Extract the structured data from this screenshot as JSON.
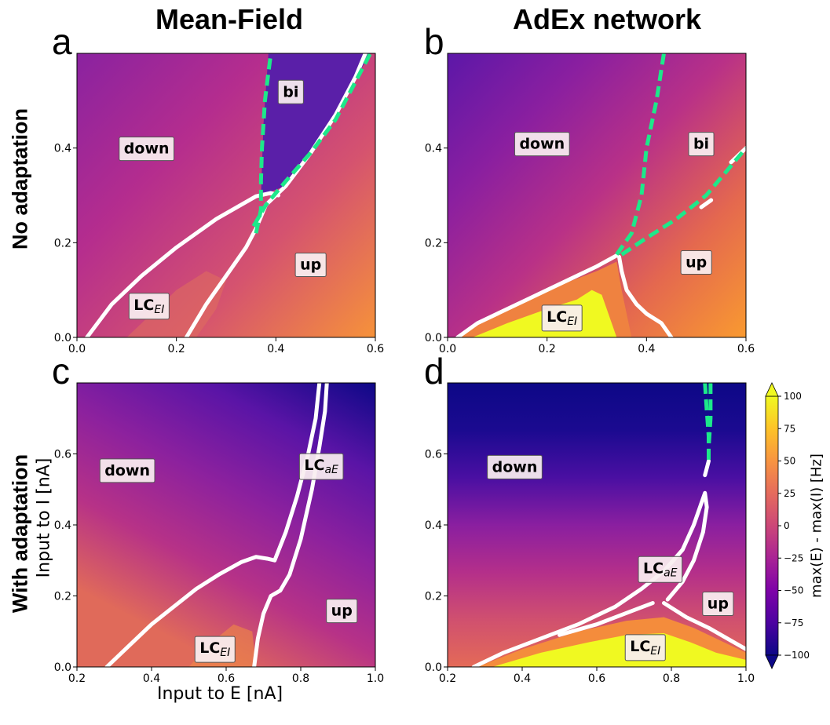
{
  "column_titles": [
    "Mean-Field",
    "AdEx network"
  ],
  "row_labels": [
    "No adaptation",
    "With adaptation"
  ],
  "xlabel": "Input to E [nA]",
  "ylabel": "Input to I [nA]",
  "colorbar": {
    "label": "max(E) - max(I) [Hz]",
    "range": [
      -100,
      100
    ],
    "ticks": [
      "100",
      "75",
      "50",
      "25",
      "0",
      "−25",
      "−50",
      "−75",
      "−100"
    ],
    "colormap": [
      "#0d0887",
      "#4c02a1",
      "#7e03a8",
      "#a92395",
      "#cc4778",
      "#e56b5d",
      "#f89441",
      "#fdc328",
      "#f0f921"
    ],
    "extend": "both"
  },
  "chart_data": [
    {
      "type": "heatmap",
      "panel": "a",
      "xlim": [
        0,
        0.6
      ],
      "ylim": [
        0,
        0.6
      ],
      "xticks": [
        "0.0",
        "0.2",
        "0.4",
        "0.6"
      ],
      "xtickvals": [
        0,
        0.2,
        0.4,
        0.6
      ],
      "yticks": [
        "0.0",
        "0.2",
        "0.4"
      ],
      "ytickvals": [
        0,
        0.2,
        0.4
      ],
      "background": {
        "from": [
          0,
          0.6
        ],
        "to": [
          0.6,
          0
        ],
        "colors": [
          "#8a22a0",
          "#b52d8e",
          "#d5536f",
          "#f6923a"
        ]
      },
      "regions": [
        {
          "name": "bi",
          "color": "#5a1fa8",
          "points": [
            [
              0.37,
              0.3
            ],
            [
              0.375,
              0.45
            ],
            [
              0.385,
              0.6
            ],
            [
              0.59,
              0.6
            ],
            [
              0.5,
              0.44
            ],
            [
              0.42,
              0.32
            ]
          ]
        },
        {
          "name": "LC",
          "color": "#e0705c",
          "opacity": 0.55,
          "points": [
            [
              0.1,
              0
            ],
            [
              0.2,
              0.1
            ],
            [
              0.26,
              0.14
            ],
            [
              0.3,
              0.12
            ],
            [
              0.28,
              0.06
            ],
            [
              0.24,
              0
            ]
          ]
        }
      ],
      "white_contours": [
        [
          [
            0.02,
            0
          ],
          [
            0.07,
            0.07
          ],
          [
            0.13,
            0.13
          ],
          [
            0.2,
            0.19
          ],
          [
            0.28,
            0.25
          ],
          [
            0.33,
            0.28
          ],
          [
            0.36,
            0.298
          ],
          [
            0.39,
            0.305
          ],
          [
            0.405,
            0.3
          ]
        ],
        [
          [
            0.22,
            0
          ],
          [
            0.26,
            0.07
          ],
          [
            0.3,
            0.13
          ],
          [
            0.34,
            0.19
          ],
          [
            0.36,
            0.23
          ],
          [
            0.38,
            0.28
          ],
          [
            0.42,
            0.32
          ],
          [
            0.47,
            0.39
          ],
          [
            0.52,
            0.47
          ],
          [
            0.56,
            0.55
          ],
          [
            0.58,
            0.6
          ]
        ]
      ],
      "green_dashed": [
        [
          [
            0.36,
            0.22
          ],
          [
            0.37,
            0.27
          ],
          [
            0.37,
            0.33
          ],
          [
            0.372,
            0.4
          ],
          [
            0.378,
            0.5
          ],
          [
            0.385,
            0.56
          ],
          [
            0.39,
            0.6
          ]
        ],
        [
          [
            0.355,
            0.235
          ],
          [
            0.38,
            0.28
          ],
          [
            0.42,
            0.33
          ],
          [
            0.47,
            0.39
          ],
          [
            0.52,
            0.46
          ],
          [
            0.56,
            0.54
          ],
          [
            0.59,
            0.6
          ]
        ]
      ],
      "annotations": [
        {
          "text": "bi",
          "x": 0.43,
          "y": 0.52
        },
        {
          "text": "down",
          "x": 0.14,
          "y": 0.4
        },
        {
          "text": "up",
          "x": 0.47,
          "y": 0.155
        },
        {
          "text": "LC",
          "sub": "EI",
          "x": 0.145,
          "y": 0.07
        }
      ]
    },
    {
      "type": "heatmap",
      "panel": "b",
      "xlim": [
        0,
        0.6
      ],
      "ylim": [
        0,
        0.6
      ],
      "xticks": [
        "0.0",
        "0.2",
        "0.4",
        "0.6"
      ],
      "xtickvals": [
        0,
        0.2,
        0.4,
        0.6
      ],
      "yticks": [
        "0.0",
        "0.2",
        "0.4"
      ],
      "ytickvals": [
        0,
        0.2,
        0.4
      ],
      "background": {
        "from": [
          0,
          0.6
        ],
        "to": [
          0.6,
          0
        ],
        "colors": [
          "#5c17a8",
          "#8a1fa0",
          "#b93187",
          "#e4684f",
          "#f99a30"
        ]
      },
      "regions": [
        {
          "name": "LC-orange",
          "color": "#ef8240",
          "points": [
            [
              0.02,
              0
            ],
            [
              0.1,
              0.055
            ],
            [
              0.2,
              0.1
            ],
            [
              0.3,
              0.14
            ],
            [
              0.34,
              0.16
            ],
            [
              0.35,
              0.1
            ],
            [
              0.36,
              0.05
            ],
            [
              0.37,
              0
            ]
          ]
        },
        {
          "name": "LC-yellow",
          "color": "#f0f921",
          "points": [
            [
              0.05,
              0
            ],
            [
              0.12,
              0.03
            ],
            [
              0.2,
              0.06
            ],
            [
              0.26,
              0.08
            ],
            [
              0.29,
              0.1
            ],
            [
              0.31,
              0.09
            ],
            [
              0.32,
              0.06
            ],
            [
              0.33,
              0.03
            ],
            [
              0.34,
              0
            ]
          ]
        }
      ],
      "white_contours": [
        [
          [
            0.02,
            0
          ],
          [
            0.06,
            0.03
          ],
          [
            0.12,
            0.06
          ],
          [
            0.2,
            0.1
          ],
          [
            0.26,
            0.13
          ],
          [
            0.3,
            0.15
          ],
          [
            0.34,
            0.173
          ]
        ],
        [
          [
            0.345,
            0.17
          ],
          [
            0.35,
            0.14
          ],
          [
            0.36,
            0.1
          ],
          [
            0.38,
            0.07
          ],
          [
            0.4,
            0.05
          ],
          [
            0.43,
            0.03
          ],
          [
            0.45,
            0
          ]
        ],
        [
          [
            0.51,
            0.275
          ],
          [
            0.53,
            0.29
          ]
        ],
        [
          [
            0.57,
            0.37
          ],
          [
            0.6,
            0.4
          ]
        ]
      ],
      "green_dashed": [
        [
          [
            0.34,
            0.175
          ],
          [
            0.37,
            0.22
          ],
          [
            0.39,
            0.3
          ],
          [
            0.4,
            0.4
          ],
          [
            0.42,
            0.5
          ],
          [
            0.435,
            0.6
          ]
        ],
        [
          [
            0.35,
            0.175
          ],
          [
            0.4,
            0.21
          ],
          [
            0.46,
            0.25
          ],
          [
            0.52,
            0.3
          ],
          [
            0.56,
            0.35
          ],
          [
            0.6,
            0.4
          ]
        ]
      ],
      "annotations": [
        {
          "text": "down",
          "x": 0.19,
          "y": 0.41
        },
        {
          "text": "bi",
          "x": 0.51,
          "y": 0.41
        },
        {
          "text": "up",
          "x": 0.5,
          "y": 0.16
        },
        {
          "text": "LC",
          "sub": "EI",
          "x": 0.23,
          "y": 0.045
        }
      ]
    },
    {
      "type": "heatmap",
      "panel": "c",
      "xlim": [
        0.2,
        1.0
      ],
      "ylim": [
        0,
        0.8
      ],
      "xticks": [
        "0.2",
        "0.4",
        "0.6",
        "0.8",
        "1.0"
      ],
      "xtickvals": [
        0.2,
        0.4,
        0.6,
        0.8,
        1.0
      ],
      "yticks": [
        "0.0",
        "0.2",
        "0.4",
        "0.6"
      ],
      "ytickvals": [
        0,
        0.2,
        0.4,
        0.6
      ],
      "background": {
        "from": [
          1.0,
          0.8
        ],
        "to": [
          0.6,
          0
        ],
        "colors": [
          "#0d0887",
          "#5a14a6",
          "#8c219e",
          "#b73287",
          "#e06a5a"
        ]
      },
      "regions": [
        {
          "name": "LC",
          "color": "#f08a45",
          "opacity": 0.6,
          "points": [
            [
              0.5,
              0
            ],
            [
              0.55,
              0.06
            ],
            [
              0.62,
              0.12
            ],
            [
              0.67,
              0.1
            ],
            [
              0.68,
              0
            ]
          ]
        }
      ],
      "white_contours": [
        [
          [
            0.28,
            0
          ],
          [
            0.34,
            0.06
          ],
          [
            0.4,
            0.12
          ],
          [
            0.46,
            0.17
          ],
          [
            0.52,
            0.22
          ],
          [
            0.58,
            0.26
          ],
          [
            0.64,
            0.295
          ],
          [
            0.68,
            0.31
          ],
          [
            0.71,
            0.305
          ],
          [
            0.73,
            0.3
          ],
          [
            0.76,
            0.38
          ],
          [
            0.79,
            0.48
          ],
          [
            0.82,
            0.6
          ],
          [
            0.84,
            0.7
          ],
          [
            0.85,
            0.8
          ]
        ],
        [
          [
            0.675,
            0
          ],
          [
            0.685,
            0.08
          ],
          [
            0.7,
            0.15
          ],
          [
            0.72,
            0.2
          ],
          [
            0.745,
            0.215
          ],
          [
            0.77,
            0.26
          ],
          [
            0.8,
            0.36
          ],
          [
            0.83,
            0.5
          ],
          [
            0.85,
            0.62
          ],
          [
            0.865,
            0.72
          ],
          [
            0.87,
            0.8
          ]
        ]
      ],
      "green_dashed": [],
      "annotations": [
        {
          "text": "down",
          "x": 0.335,
          "y": 0.555
        },
        {
          "text": "LC",
          "sub": "aE",
          "x": 0.855,
          "y": 0.57
        },
        {
          "text": "up",
          "x": 0.91,
          "y": 0.16
        },
        {
          "text": "LC",
          "sub": "EI",
          "x": 0.57,
          "y": 0.055
        }
      ]
    },
    {
      "type": "heatmap",
      "panel": "d",
      "xlim": [
        0.2,
        1.0
      ],
      "ylim": [
        0,
        0.8
      ],
      "xticks": [
        "0.2",
        "0.4",
        "0.6",
        "0.8",
        "1.0"
      ],
      "xtickvals": [
        0.2,
        0.4,
        0.6,
        0.8,
        1.0
      ],
      "yticks": [
        "0.0",
        "0.2",
        "0.4",
        "0.6"
      ],
      "ytickvals": [
        0,
        0.2,
        0.4,
        0.6
      ],
      "background": {
        "from": [
          0.6,
          0.8
        ],
        "to": [
          0.6,
          0
        ],
        "colors": [
          "#0d0887",
          "#1b0a90",
          "#4a0fa2",
          "#8a1fa0",
          "#b42f8a",
          "#d0506f",
          "#e46a57"
        ]
      },
      "regions": [
        {
          "name": "LC-orange",
          "color": "#f48c3c",
          "points": [
            [
              0.28,
              0
            ],
            [
              0.4,
              0.05
            ],
            [
              0.55,
              0.1
            ],
            [
              0.68,
              0.13
            ],
            [
              0.78,
              0.14
            ],
            [
              0.86,
              0.11
            ],
            [
              0.94,
              0.07
            ],
            [
              1.0,
              0.04
            ],
            [
              1.0,
              0
            ]
          ]
        },
        {
          "name": "LC-yellow",
          "color": "#f0f921",
          "points": [
            [
              0.32,
              0
            ],
            [
              0.45,
              0.04
            ],
            [
              0.58,
              0.07
            ],
            [
              0.68,
              0.09
            ],
            [
              0.78,
              0.095
            ],
            [
              0.85,
              0.07
            ],
            [
              0.92,
              0.04
            ],
            [
              1.0,
              0.02
            ],
            [
              1.0,
              0
            ]
          ]
        }
      ],
      "white_contours": [
        [
          [
            0.27,
            0
          ],
          [
            0.35,
            0.04
          ],
          [
            0.45,
            0.08
          ],
          [
            0.55,
            0.12
          ],
          [
            0.65,
            0.17
          ],
          [
            0.72,
            0.22
          ],
          [
            0.78,
            0.27
          ],
          [
            0.83,
            0.33
          ],
          [
            0.86,
            0.4
          ],
          [
            0.88,
            0.46
          ],
          [
            0.89,
            0.49
          ],
          [
            0.895,
            0.45
          ],
          [
            0.885,
            0.38
          ],
          [
            0.86,
            0.3
          ],
          [
            0.83,
            0.24
          ],
          [
            0.79,
            0.19
          ]
        ],
        [
          [
            0.5,
            0.09
          ],
          [
            0.6,
            0.12
          ],
          [
            0.7,
            0.16
          ],
          [
            0.75,
            0.18
          ]
        ],
        [
          [
            0.78,
            0.18
          ],
          [
            0.84,
            0.14
          ],
          [
            0.9,
            0.11
          ],
          [
            0.95,
            0.08
          ],
          [
            1.0,
            0.05
          ]
        ],
        [
          [
            0.89,
            0.54
          ],
          [
            0.895,
            0.56
          ],
          [
            0.9,
            0.58
          ]
        ]
      ],
      "green_dashed": [
        [
          [
            0.89,
            0.8
          ],
          [
            0.895,
            0.72
          ],
          [
            0.9,
            0.65
          ],
          [
            0.9,
            0.58
          ]
        ],
        [
          [
            0.905,
            0.8
          ],
          [
            0.905,
            0.7
          ],
          [
            0.9,
            0.62
          ]
        ]
      ],
      "annotations": [
        {
          "text": "down",
          "x": 0.38,
          "y": 0.565
        },
        {
          "text": "LC",
          "sub": "aE",
          "x": 0.77,
          "y": 0.28
        },
        {
          "text": "up",
          "x": 0.925,
          "y": 0.18
        },
        {
          "text": "LC",
          "sub": "EI",
          "x": 0.73,
          "y": 0.06
        }
      ]
    }
  ]
}
